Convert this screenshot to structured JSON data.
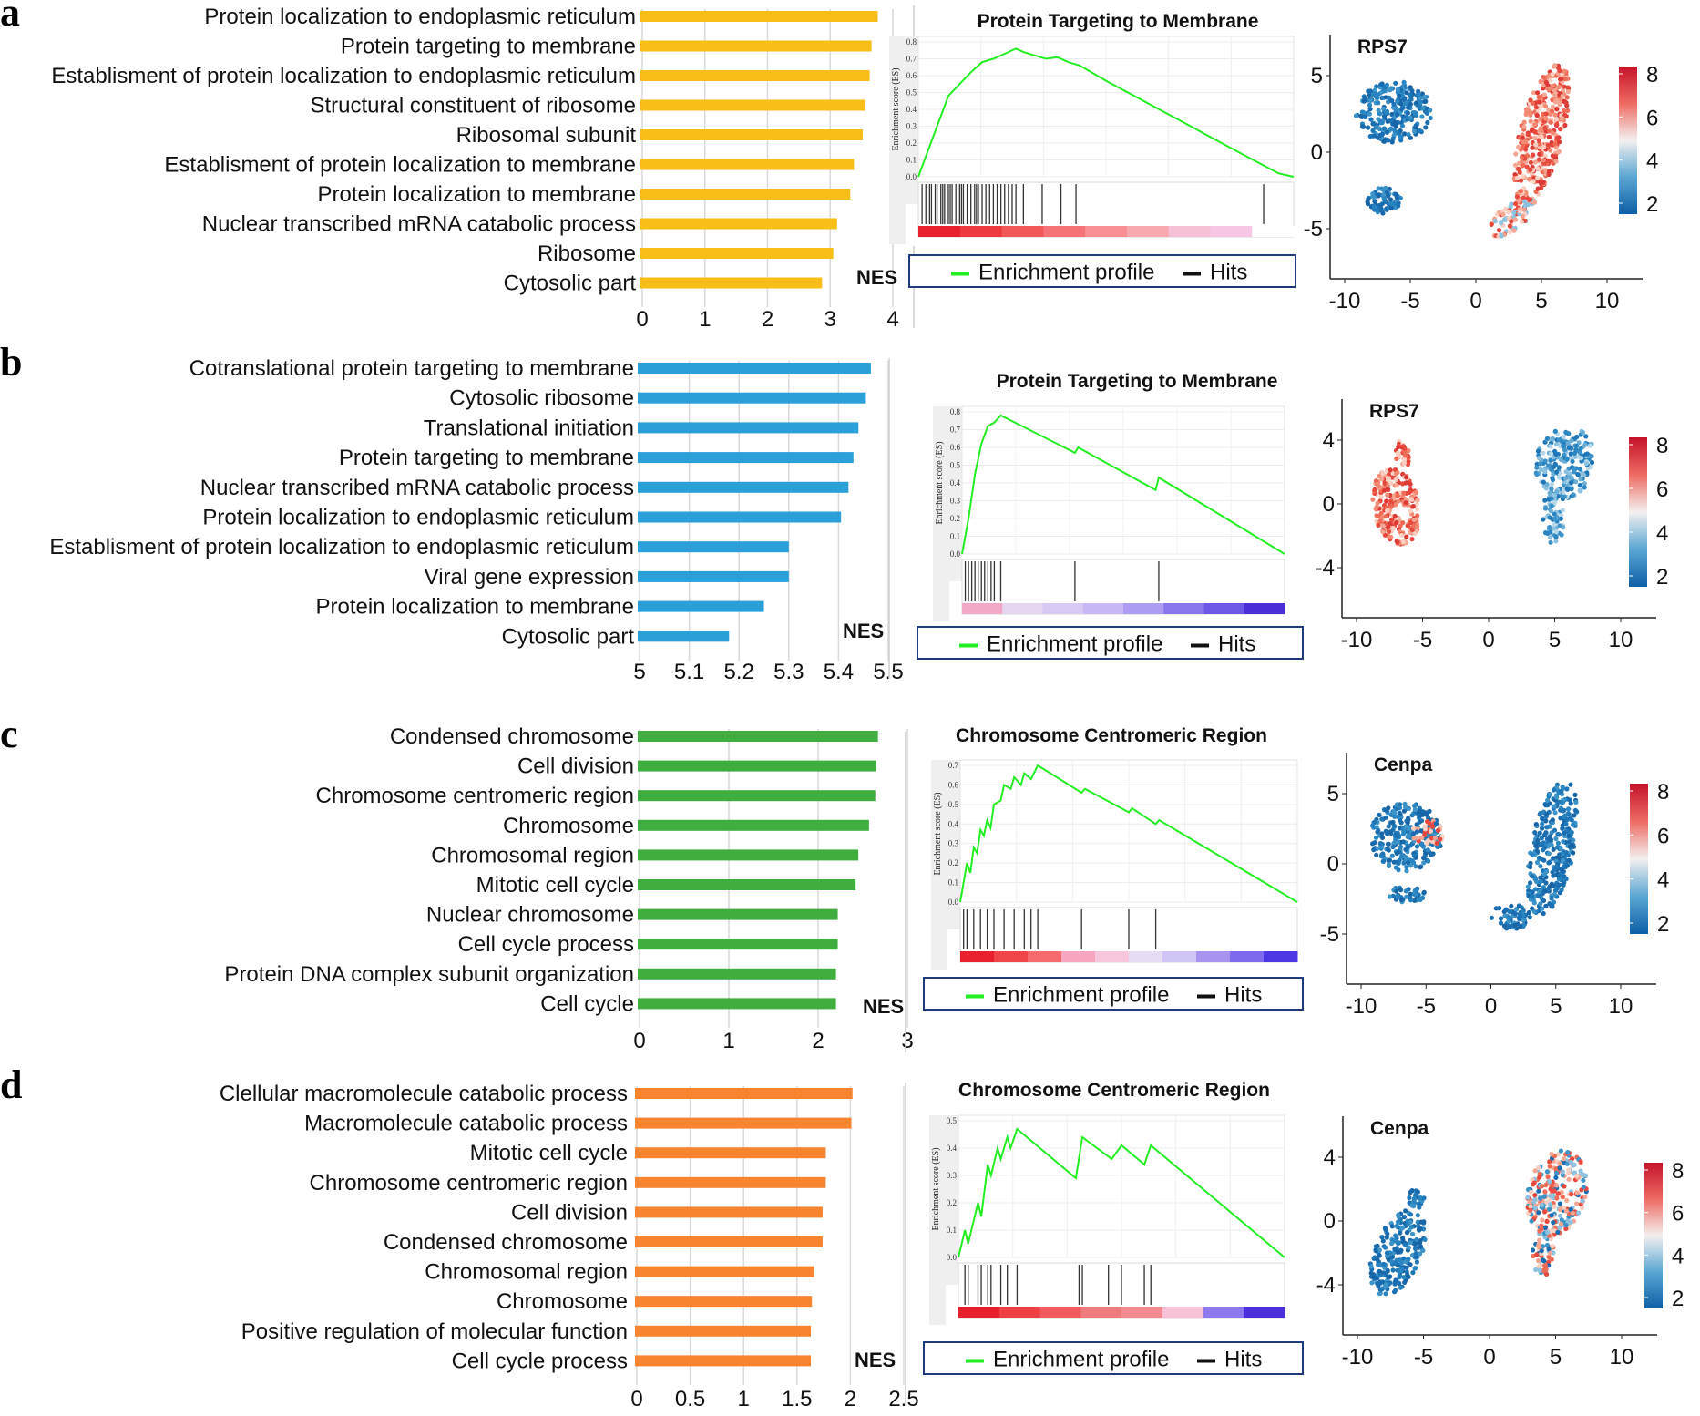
{
  "panels": [
    {
      "label": "a",
      "bar": {
        "type": "bar",
        "orientation": "horizontal",
        "color": "#F7BE18",
        "categories": [
          "Protein localization to endoplasmic reticulum",
          "Protein targeting to membrane",
          "Establisment of protein localization to endoplasmic reticulum",
          "Structural constituent of ribosome",
          "Ribosomal subunit",
          "Establisment of protein localization to membrane",
          "Protein localization to membrane",
          "Nuclear transcribed mRNA catabolic process",
          "Ribosome",
          "Cytosolic part"
        ],
        "values": [
          3.76,
          3.66,
          3.63,
          3.56,
          3.52,
          3.38,
          3.32,
          3.11,
          3.05,
          2.87
        ],
        "xlim": [
          0,
          4
        ],
        "xticks": [
          "0",
          "1",
          "2",
          "3",
          "4"
        ],
        "xlabel": "NES"
      },
      "gsea": {
        "title": "Protein Targeting to Membrane",
        "ylabel": "Enrichment score (ES)",
        "yticks": [
          "0.0",
          "0.1",
          "0.2",
          "0.3",
          "0.4",
          "0.5",
          "0.6",
          "0.7",
          "0.8"
        ],
        "ymax": 0.8,
        "curve": [
          [
            0,
            0
          ],
          [
            0.02,
            0.12
          ],
          [
            0.05,
            0.3
          ],
          [
            0.08,
            0.48
          ],
          [
            0.11,
            0.55
          ],
          [
            0.14,
            0.62
          ],
          [
            0.17,
            0.68
          ],
          [
            0.2,
            0.7
          ],
          [
            0.23,
            0.73
          ],
          [
            0.26,
            0.76
          ],
          [
            0.28,
            0.74
          ],
          [
            0.31,
            0.72
          ],
          [
            0.34,
            0.7
          ],
          [
            0.37,
            0.71
          ],
          [
            0.4,
            0.68
          ],
          [
            0.43,
            0.66
          ],
          [
            0.5,
            0.57
          ],
          [
            0.6,
            0.45
          ],
          [
            0.7,
            0.33
          ],
          [
            0.8,
            0.21
          ],
          [
            0.9,
            0.09
          ],
          [
            0.96,
            0.02
          ],
          [
            1,
            0.0
          ]
        ],
        "hits": [
          0.01,
          0.02,
          0.03,
          0.035,
          0.045,
          0.05,
          0.06,
          0.065,
          0.07,
          0.08,
          0.085,
          0.09,
          0.1,
          0.11,
          0.115,
          0.12,
          0.13,
          0.14,
          0.15,
          0.155,
          0.16,
          0.17,
          0.18,
          0.19,
          0.2,
          0.21,
          0.22,
          0.23,
          0.24,
          0.25,
          0.26,
          0.28,
          0.33,
          0.38,
          0.42,
          0.92
        ],
        "rank_colors": [
          "#e7202c",
          "#ee3a3f",
          "#f25858",
          "#f57376",
          "#f78f94",
          "#f7a8ae",
          "#f5bfd6",
          "#f6c6e4",
          "#ffffff"
        ],
        "legend": {
          "profile": "Enrichment profile",
          "hits": "Hits"
        }
      },
      "umap": {
        "gene": "RPS7",
        "xticks": [
          "-10",
          "-5",
          "0",
          "5",
          "10"
        ],
        "yticks": [
          "5",
          "0",
          "-5"
        ],
        "colorbar_ticks": [
          "8",
          "6",
          "4",
          "2"
        ],
        "cluster_left_expr": "low",
        "cluster_right_expr": "high"
      }
    },
    {
      "label": "b",
      "bar": {
        "type": "bar",
        "orientation": "horizontal",
        "color": "#2A9FD8",
        "categories": [
          "Cotranslational protein targeting to membrane",
          "Cytosolic ribosome",
          "Translational initiation",
          "Protein targeting to membrane",
          "Nuclear transcribed mRNA catabolic process",
          "Protein localization to endoplasmic reticulum",
          "Establisment of protein localization to endoplasmic reticulum",
          "Viral gene expression",
          "Protein localization to membrane",
          "Cytosolic part"
        ],
        "values": [
          5.465,
          5.455,
          5.44,
          5.43,
          5.42,
          5.405,
          5.3,
          5.3,
          5.25,
          5.18
        ],
        "xlim": [
          5,
          5.5
        ],
        "xticks": [
          "5",
          "5.1",
          "5.2",
          "5.3",
          "5.4",
          "5.5"
        ],
        "xlabel": "NES"
      },
      "gsea": {
        "title": "Protein Targeting to Membrane",
        "ylabel": "Enrichment score (ES)",
        "yticks": [
          "0.0",
          "0.1",
          "0.2",
          "0.3",
          "0.4",
          "0.5",
          "0.6",
          "0.7",
          "0.8"
        ],
        "ymax": 0.8,
        "curve": [
          [
            0,
            0
          ],
          [
            0.02,
            0.2
          ],
          [
            0.04,
            0.45
          ],
          [
            0.06,
            0.62
          ],
          [
            0.08,
            0.72
          ],
          [
            0.1,
            0.74
          ],
          [
            0.12,
            0.78
          ],
          [
            0.35,
            0.57
          ],
          [
            0.36,
            0.6
          ],
          [
            0.6,
            0.36
          ],
          [
            0.61,
            0.43
          ],
          [
            1,
            0.0
          ]
        ],
        "hits": [
          0.01,
          0.02,
          0.03,
          0.04,
          0.05,
          0.06,
          0.07,
          0.08,
          0.09,
          0.1,
          0.12,
          0.35,
          0.61
        ],
        "rank_colors": [
          "#f4a8c8",
          "#e4d6f1",
          "#d7c9f3",
          "#c7b8f3",
          "#ad9cf1",
          "#8a76ec",
          "#6c58e7",
          "#4a2ed8"
        ],
        "legend": {
          "profile": "Enrichment profile",
          "hits": "Hits"
        }
      },
      "umap": {
        "gene": "RPS7",
        "xticks": [
          "-10",
          "-5",
          "0",
          "5",
          "10"
        ],
        "yticks": [
          "4",
          "0",
          "-4"
        ],
        "colorbar_ticks": [
          "8",
          "6",
          "4",
          "2"
        ],
        "cluster_left_expr": "high",
        "cluster_right_expr": "mid"
      }
    },
    {
      "label": "c",
      "bar": {
        "type": "bar",
        "orientation": "horizontal",
        "color": "#3FAE3F",
        "categories": [
          "Condensed chromosome",
          "Cell division",
          "Chromosome centromeric region",
          "Chromosome",
          "Chromosomal region",
          "Mitotic cell cycle",
          "Nuclear chromosome",
          "Cell cycle process",
          "Protein DNA complex subunit organization",
          "Cell cycle"
        ],
        "values": [
          2.67,
          2.65,
          2.64,
          2.57,
          2.45,
          2.42,
          2.22,
          2.22,
          2.2,
          2.2
        ],
        "xlim": [
          0,
          3
        ],
        "xticks": [
          "0",
          "1",
          "2",
          "3"
        ],
        "xlabel": "NES"
      },
      "gsea": {
        "title": "Chromosome Centromeric Region",
        "ylabel": "Enrichment score (ES)",
        "yticks": [
          "0.0",
          "0.1",
          "0.2",
          "0.3",
          "0.4",
          "0.5",
          "0.6",
          "0.7"
        ],
        "ymax": 0.7,
        "curve": [
          [
            0,
            0
          ],
          [
            0.01,
            0.1
          ],
          [
            0.02,
            0.2
          ],
          [
            0.03,
            0.15
          ],
          [
            0.04,
            0.28
          ],
          [
            0.05,
            0.25
          ],
          [
            0.06,
            0.37
          ],
          [
            0.07,
            0.34
          ],
          [
            0.08,
            0.42
          ],
          [
            0.09,
            0.38
          ],
          [
            0.1,
            0.5
          ],
          [
            0.12,
            0.52
          ],
          [
            0.13,
            0.6
          ],
          [
            0.15,
            0.58
          ],
          [
            0.16,
            0.64
          ],
          [
            0.18,
            0.6
          ],
          [
            0.19,
            0.66
          ],
          [
            0.21,
            0.63
          ],
          [
            0.23,
            0.7
          ],
          [
            0.36,
            0.56
          ],
          [
            0.37,
            0.58
          ],
          [
            0.5,
            0.46
          ],
          [
            0.51,
            0.48
          ],
          [
            0.58,
            0.4
          ],
          [
            0.59,
            0.42
          ],
          [
            1,
            0.0
          ]
        ],
        "hits": [
          0.01,
          0.02,
          0.04,
          0.06,
          0.08,
          0.1,
          0.13,
          0.16,
          0.19,
          0.21,
          0.23,
          0.36,
          0.5,
          0.58
        ],
        "rank_colors": [
          "#e7202c",
          "#ef4549",
          "#f46a6d",
          "#f6a7bf",
          "#f7c5dc",
          "#e6dcf4",
          "#cfc4f3",
          "#a894ef",
          "#7e6aec",
          "#4c35e2"
        ],
        "legend": {
          "profile": "Enrichment profile",
          "hits": "Hits"
        }
      },
      "umap": {
        "gene": "Cenpa",
        "xticks": [
          "-10",
          "-5",
          "0",
          "5",
          "10"
        ],
        "yticks": [
          "5",
          "0",
          "-5"
        ],
        "colorbar_ticks": [
          "8",
          "6",
          "4",
          "2"
        ],
        "cluster_left_expr": "low",
        "cluster_right_expr": "low"
      }
    },
    {
      "label": "d",
      "bar": {
        "type": "bar",
        "orientation": "horizontal",
        "color": "#F98430",
        "categories": [
          "Clellular macromolecule catabolic process",
          "Macromolecule catabolic process",
          "Mitotic cell cycle",
          "Chromosome centromeric region",
          "Cell division",
          "Condensed chromosome",
          "Chromosomal region",
          "Chromosome",
          "Positive regulation of molecular function",
          "Cell cycle process"
        ],
        "values": [
          2.02,
          2.01,
          1.77,
          1.77,
          1.74,
          1.74,
          1.66,
          1.64,
          1.63,
          1.63
        ],
        "xlim": [
          0,
          2.5
        ],
        "xticks": [
          "0",
          "0.5",
          "1",
          "1.5",
          "2",
          "2.5"
        ],
        "xlabel": "NES"
      },
      "gsea": {
        "title": "Chromosome Centromeric Region",
        "ylabel": "Enrichment score (ES)",
        "yticks": [
          "0.0",
          "0.1",
          "0.2",
          "0.3",
          "0.4",
          "0.5"
        ],
        "ymax": 0.5,
        "curve": [
          [
            0,
            0
          ],
          [
            0.02,
            0.1
          ],
          [
            0.03,
            0.05
          ],
          [
            0.06,
            0.2
          ],
          [
            0.07,
            0.15
          ],
          [
            0.09,
            0.34
          ],
          [
            0.1,
            0.3
          ],
          [
            0.12,
            0.4
          ],
          [
            0.13,
            0.36
          ],
          [
            0.15,
            0.44
          ],
          [
            0.16,
            0.4
          ],
          [
            0.18,
            0.47
          ],
          [
            0.36,
            0.29
          ],
          [
            0.38,
            0.44
          ],
          [
            0.47,
            0.36
          ],
          [
            0.5,
            0.41
          ],
          [
            0.57,
            0.34
          ],
          [
            0.59,
            0.41
          ],
          [
            1,
            0.0
          ]
        ],
        "hits": [
          0.02,
          0.03,
          0.06,
          0.07,
          0.09,
          0.1,
          0.13,
          0.15,
          0.18,
          0.37,
          0.38,
          0.46,
          0.5,
          0.57,
          0.59
        ],
        "rank_colors": [
          "#e7202c",
          "#ed3f44",
          "#f05a5e",
          "#f07b7e",
          "#f38b91",
          "#f7c1d7",
          "#8f79ee",
          "#4b2fd8"
        ],
        "legend": {
          "profile": "Enrichment profile",
          "hits": "Hits"
        }
      },
      "umap": {
        "gene": "Cenpa",
        "xticks": [
          "-10",
          "-5",
          "0",
          "5",
          "10"
        ],
        "yticks": [
          "4",
          "0",
          "-4"
        ],
        "colorbar_ticks": [
          "8",
          "6",
          "4",
          "2"
        ],
        "cluster_left_expr": "low",
        "cluster_right_expr": "mixed"
      }
    }
  ],
  "colors": {
    "profile_line": "#22ee22",
    "legend_border": "#1f3b7a",
    "low": "#1a6cb0",
    "high": "#e8483d"
  }
}
